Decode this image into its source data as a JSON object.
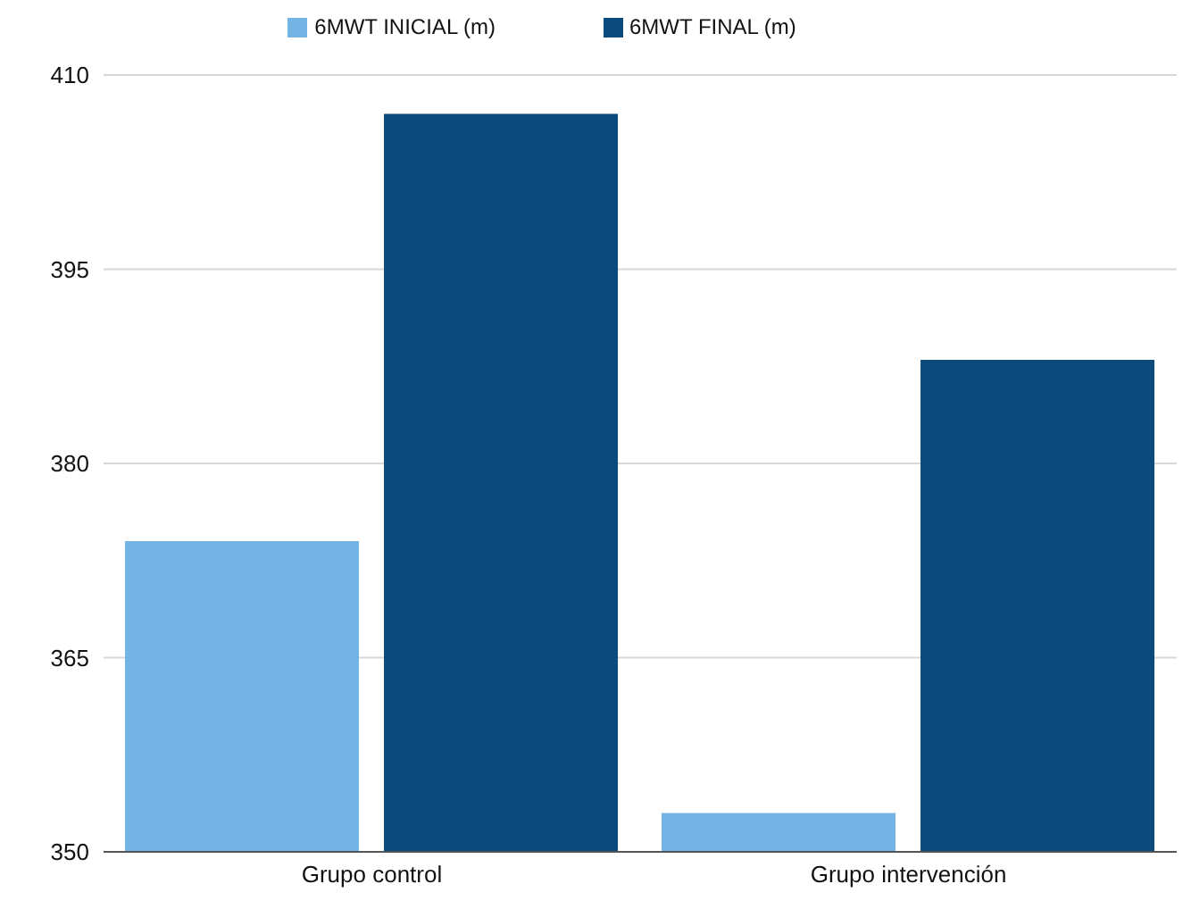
{
  "chart_data": {
    "type": "bar",
    "categories": [
      "Grupo control",
      "Grupo intervención"
    ],
    "series": [
      {
        "name": "6MWT INICIAL (m)",
        "color": "#74b4e4",
        "values": [
          374,
          353
        ]
      },
      {
        "name": "6MWT FINAL (m)",
        "color": "#0a4a7c",
        "values": [
          407,
          388
        ]
      }
    ],
    "ylim": [
      350,
      410
    ],
    "yticks": [
      350,
      365,
      380,
      395,
      410
    ],
    "grid": "y",
    "legend": "top"
  }
}
